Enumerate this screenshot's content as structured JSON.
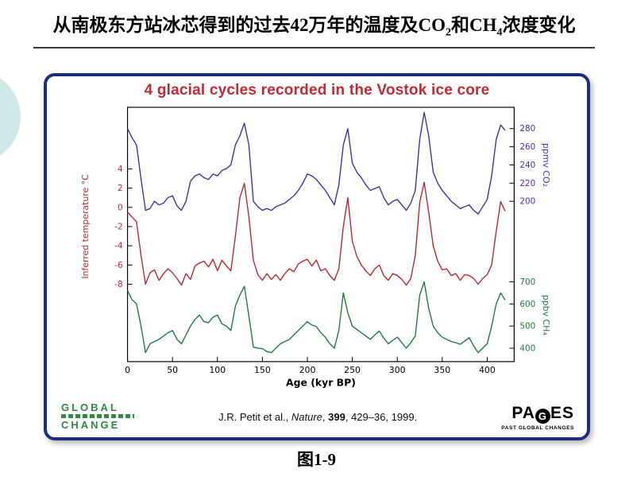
{
  "slide": {
    "title_parts": {
      "p1": "从南极东方站冰芯得到的过去42万年的温度及CO",
      "sub1": "2",
      "p2": "和CH",
      "sub2": "4",
      "p3": "浓度变化"
    },
    "caption": "图1-9"
  },
  "figure": {
    "title": "4 glacial cycles recorded in the Vostok ice core",
    "colors": {
      "border": "#1b2f7e",
      "figure_title": "#c42a33"
    },
    "citation": {
      "p1": "J.R. Petit et al., ",
      "journal": "Nature",
      "p2": ", ",
      "volume": "399",
      "p3": ", 429–36, 1999."
    },
    "logos": {
      "global_change": {
        "line1": "GLOBAL",
        "line2": "CHANGE"
      },
      "pages": {
        "p1": "PA",
        "g": "G",
        "p2": "ES",
        "subtitle": "PAST GLOBAL CHANGES"
      }
    }
  },
  "chart_data": {
    "type": "line",
    "title": "4 glacial cycles recorded in the Vostok ice core",
    "xlabel": "Age (kyr BP)",
    "x_range": [
      0,
      430
    ],
    "x_ticks": [
      0,
      50,
      100,
      150,
      200,
      250,
      300,
      350,
      400
    ],
    "grid": false,
    "x": [
      0,
      5,
      10,
      15,
      20,
      25,
      30,
      35,
      40,
      45,
      50,
      55,
      60,
      65,
      70,
      75,
      80,
      85,
      90,
      95,
      100,
      105,
      110,
      115,
      120,
      125,
      130,
      135,
      140,
      145,
      150,
      155,
      160,
      165,
      170,
      175,
      180,
      185,
      190,
      195,
      200,
      205,
      210,
      215,
      220,
      225,
      230,
      235,
      240,
      245,
      250,
      255,
      260,
      265,
      270,
      275,
      280,
      285,
      290,
      295,
      300,
      305,
      310,
      315,
      320,
      325,
      330,
      335,
      340,
      345,
      350,
      355,
      360,
      365,
      370,
      375,
      380,
      385,
      390,
      395,
      400,
      405,
      410,
      415,
      420
    ],
    "series": [
      {
        "name": "CO2",
        "axis_label": "ppmv CO₂",
        "side": "right",
        "color": "#4b2fa8",
        "ticks": [
          280,
          260,
          240,
          220,
          200
        ],
        "values": [
          280,
          270,
          262,
          225,
          190,
          192,
          200,
          196,
          198,
          204,
          206,
          195,
          190,
          200,
          222,
          228,
          230,
          226,
          224,
          230,
          228,
          234,
          236,
          240,
          262,
          272,
          286,
          262,
          200,
          194,
          190,
          192,
          190,
          194,
          196,
          198,
          202,
          206,
          212,
          220,
          230,
          228,
          224,
          218,
          212,
          204,
          196,
          218,
          262,
          280,
          242,
          232,
          226,
          218,
          212,
          214,
          216,
          204,
          196,
          200,
          202,
          196,
          190,
          198,
          212,
          268,
          298,
          272,
          232,
          220,
          212,
          206,
          200,
          196,
          192,
          194,
          196,
          190,
          186,
          194,
          202,
          228,
          268,
          284,
          278
        ]
      },
      {
        "name": "Temperature",
        "axis_label": "Inferred temperature °C",
        "side": "left",
        "color": "#c0272d",
        "ticks": [
          4,
          2,
          0,
          -2,
          -4,
          -6,
          -8
        ],
        "values": [
          -0.5,
          -1.0,
          -1.5,
          -5.0,
          -8.0,
          -6.8,
          -6.5,
          -7.6,
          -6.9,
          -6.4,
          -6.8,
          -7.4,
          -8.1,
          -6.9,
          -7.5,
          -6.1,
          -5.8,
          -5.6,
          -6.2,
          -5.4,
          -6.6,
          -5.5,
          -6.1,
          -6.6,
          -3.0,
          1.0,
          2.5,
          -1.0,
          -5.5,
          -7.0,
          -7.6,
          -6.9,
          -7.5,
          -7.0,
          -7.6,
          -6.9,
          -6.4,
          -6.7,
          -5.9,
          -5.6,
          -5.4,
          -6.1,
          -5.5,
          -6.6,
          -6.4,
          -7.1,
          -7.6,
          -6.4,
          -2.0,
          1.0,
          -3.5,
          -5.1,
          -6.0,
          -6.6,
          -7.1,
          -6.4,
          -6.0,
          -7.1,
          -7.6,
          -6.9,
          -7.1,
          -7.5,
          -8.1,
          -7.4,
          -5.0,
          0.5,
          2.6,
          -0.5,
          -4.0,
          -5.6,
          -6.5,
          -6.4,
          -7.1,
          -6.9,
          -7.6,
          -7.0,
          -7.1,
          -7.4,
          -8.0,
          -7.4,
          -7.0,
          -6.0,
          -2.5,
          0.6,
          -0.4
        ]
      },
      {
        "name": "CH4",
        "axis_label": "ppbv CH₄",
        "side": "right",
        "color": "#1e7d3e",
        "ticks": [
          700,
          600,
          500,
          400
        ],
        "values": [
          660,
          620,
          600,
          500,
          380,
          420,
          430,
          440,
          455,
          470,
          480,
          440,
          420,
          460,
          500,
          530,
          550,
          520,
          515,
          540,
          550,
          510,
          500,
          480,
          590,
          640,
          680,
          545,
          405,
          400,
          398,
          385,
          380,
          400,
          420,
          430,
          440,
          460,
          480,
          500,
          520,
          505,
          498,
          470,
          450,
          420,
          400,
          480,
          650,
          560,
          500,
          485,
          470,
          455,
          440,
          460,
          478,
          445,
          420,
          435,
          450,
          425,
          400,
          425,
          455,
          640,
          700,
          580,
          500,
          470,
          450,
          440,
          430,
          425,
          418,
          432,
          448,
          410,
          380,
          400,
          420,
          500,
          600,
          650,
          618
        ]
      }
    ]
  }
}
